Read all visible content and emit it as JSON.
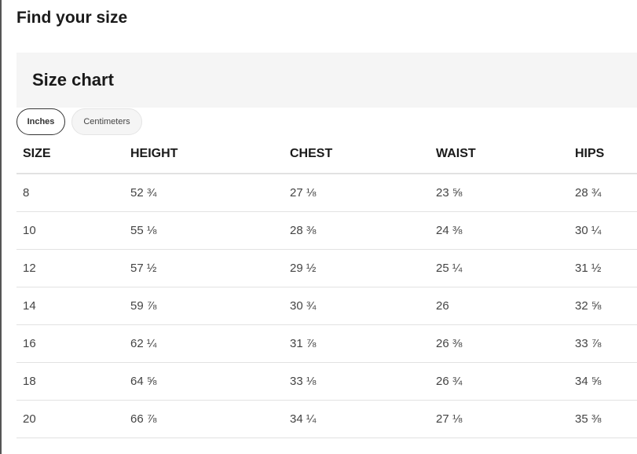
{
  "page_title": "Find your size",
  "chart_title": "Size chart",
  "unit_toggle": {
    "inches": "Inches",
    "centimeters": "Centimeters",
    "selected": "Inches"
  },
  "columns": [
    "SIZE",
    "HEIGHT",
    "CHEST",
    "WAIST",
    "HIPS"
  ],
  "rows": [
    [
      "8",
      "52 ¾",
      "27 ⅛",
      "23 ⅝",
      "28 ¾"
    ],
    [
      "10",
      "55 ⅛",
      "28 ⅜",
      "24 ⅜",
      "30 ¼"
    ],
    [
      "12",
      "57 ½",
      "29 ½",
      "25 ¼",
      "31 ½"
    ],
    [
      "14",
      "59 ⅞",
      "30 ¾",
      "26",
      "32 ⅝"
    ],
    [
      "16",
      "62 ¼",
      "31 ⅞",
      "26 ⅜",
      "33 ⅞"
    ],
    [
      "18",
      "64 ⅝",
      "33 ⅛",
      "26 ¾",
      "34 ⅝"
    ],
    [
      "20",
      "66 ⅞",
      "34 ¼",
      "27 ⅛",
      "35 ⅜"
    ]
  ]
}
